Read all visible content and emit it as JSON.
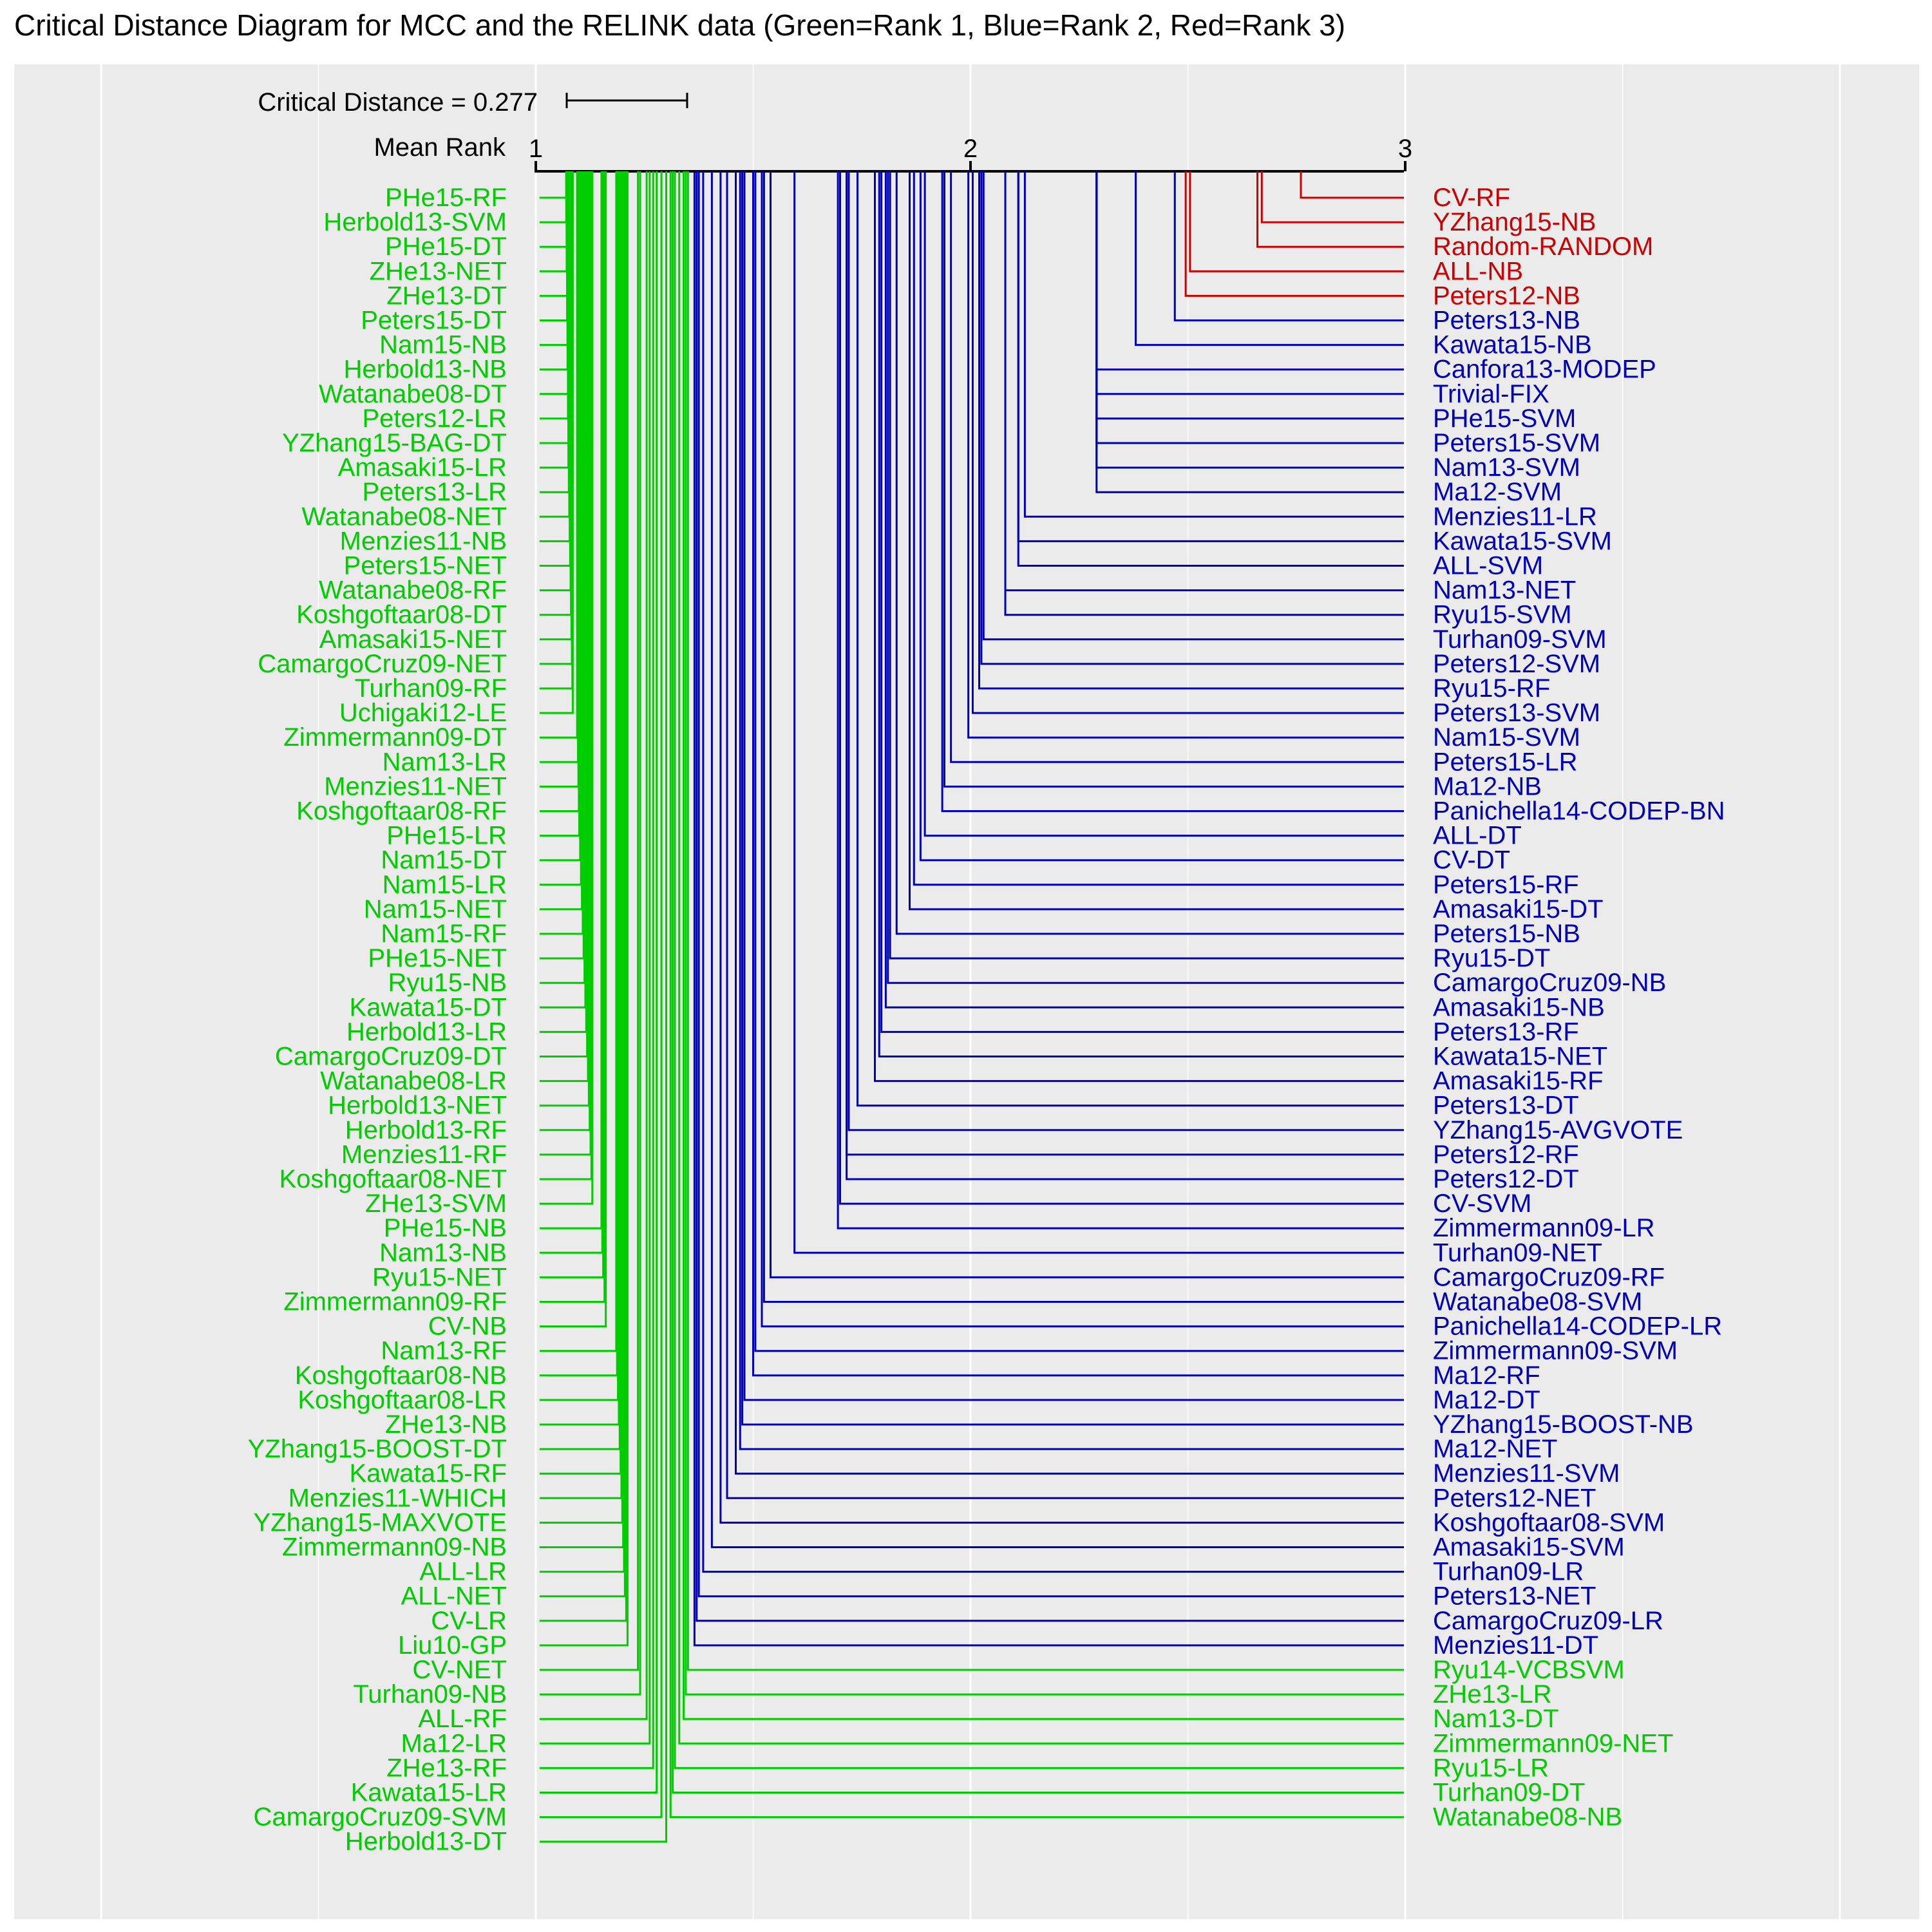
{
  "chart_data": {
    "type": "critical-distance",
    "title": "Critical Distance Diagram for MCC and the RELINK data (Green=Rank 1, Blue=Rank 2, Red=Rank 3)",
    "critical_distance_label": "Critical Distance = 0.277",
    "critical_distance": 0.277,
    "axis_label": "Mean Rank",
    "xlim": [
      1,
      3
    ],
    "ticks": [
      "1",
      "2",
      "3"
    ],
    "tick_values": [
      1,
      2,
      3
    ],
    "grid": true,
    "colors": {
      "rank1": "#00cc00",
      "rank2": "#0000b8",
      "rank3": "#cc0000",
      "panel": "#ebebeb",
      "grid": "#ffffff"
    },
    "rank_legend": [
      "Green=Rank 1",
      "Blue=Rank 2",
      "Red=Rank 3"
    ],
    "left_labels": [
      {
        "name": "PHe15-RF",
        "mean_rank": 1.07,
        "group": 1
      },
      {
        "name": "Herbold13-SVM",
        "mean_rank": 1.07,
        "group": 1
      },
      {
        "name": "PHe15-DT",
        "mean_rank": 1.071,
        "group": 1
      },
      {
        "name": "ZHe13-NET",
        "mean_rank": 1.071,
        "group": 1
      },
      {
        "name": "ZHe13-DT",
        "mean_rank": 1.072,
        "group": 1
      },
      {
        "name": "Peters15-DT",
        "mean_rank": 1.072,
        "group": 1
      },
      {
        "name": "Nam15-NB",
        "mean_rank": 1.073,
        "group": 1
      },
      {
        "name": "Herbold13-NB",
        "mean_rank": 1.073,
        "group": 1
      },
      {
        "name": "Watanabe08-DT",
        "mean_rank": 1.074,
        "group": 1
      },
      {
        "name": "Peters12-LR",
        "mean_rank": 1.074,
        "group": 1
      },
      {
        "name": "YZhang15-BAG-DT",
        "mean_rank": 1.075,
        "group": 1
      },
      {
        "name": "Amasaki15-LR",
        "mean_rank": 1.075,
        "group": 1
      },
      {
        "name": "Peters13-LR",
        "mean_rank": 1.076,
        "group": 1
      },
      {
        "name": "Watanabe08-NET",
        "mean_rank": 1.077,
        "group": 1
      },
      {
        "name": "Menzies11-NB",
        "mean_rank": 1.078,
        "group": 1
      },
      {
        "name": "Peters15-NET",
        "mean_rank": 1.079,
        "group": 1
      },
      {
        "name": "Watanabe08-RF",
        "mean_rank": 1.08,
        "group": 1
      },
      {
        "name": "Koshgoftaar08-DT",
        "mean_rank": 1.081,
        "group": 1
      },
      {
        "name": "Amasaki15-NET",
        "mean_rank": 1.082,
        "group": 1
      },
      {
        "name": "CamargoCruz09-NET",
        "mean_rank": 1.083,
        "group": 1
      },
      {
        "name": "Turhan09-RF",
        "mean_rank": 1.084,
        "group": 1
      },
      {
        "name": "Uchigaki12-LE",
        "mean_rank": 1.085,
        "group": 1
      },
      {
        "name": "Zimmermann09-DT",
        "mean_rank": 1.095,
        "group": 1
      },
      {
        "name": "Nam13-LR",
        "mean_rank": 1.097,
        "group": 1
      },
      {
        "name": "Menzies11-NET",
        "mean_rank": 1.098,
        "group": 1
      },
      {
        "name": "Koshgoftaar08-RF",
        "mean_rank": 1.099,
        "group": 1
      },
      {
        "name": "PHe15-LR",
        "mean_rank": 1.1,
        "group": 1
      },
      {
        "name": "Nam15-DT",
        "mean_rank": 1.102,
        "group": 1
      },
      {
        "name": "Nam15-LR",
        "mean_rank": 1.104,
        "group": 1
      },
      {
        "name": "Nam15-NET",
        "mean_rank": 1.106,
        "group": 1
      },
      {
        "name": "Nam15-RF",
        "mean_rank": 1.108,
        "group": 1
      },
      {
        "name": "PHe15-NET",
        "mean_rank": 1.11,
        "group": 1
      },
      {
        "name": "Ryu15-NB",
        "mean_rank": 1.112,
        "group": 1
      },
      {
        "name": "Kawata15-DT",
        "mean_rank": 1.114,
        "group": 1
      },
      {
        "name": "Herbold13-LR",
        "mean_rank": 1.116,
        "group": 1
      },
      {
        "name": "CamargoCruz09-DT",
        "mean_rank": 1.118,
        "group": 1
      },
      {
        "name": "Watanabe08-LR",
        "mean_rank": 1.12,
        "group": 1
      },
      {
        "name": "Herbold13-NET",
        "mean_rank": 1.122,
        "group": 1
      },
      {
        "name": "Herbold13-RF",
        "mean_rank": 1.124,
        "group": 1
      },
      {
        "name": "Menzies11-RF",
        "mean_rank": 1.126,
        "group": 1
      },
      {
        "name": "Koshgoftaar08-NET",
        "mean_rank": 1.128,
        "group": 1
      },
      {
        "name": "ZHe13-SVM",
        "mean_rank": 1.13,
        "group": 1
      },
      {
        "name": "PHe15-NB",
        "mean_rank": 1.151,
        "group": 1
      },
      {
        "name": "Nam13-NB",
        "mean_rank": 1.153,
        "group": 1
      },
      {
        "name": "Ryu15-NET",
        "mean_rank": 1.155,
        "group": 1
      },
      {
        "name": "Zimmermann09-RF",
        "mean_rank": 1.158,
        "group": 1
      },
      {
        "name": "CV-NB",
        "mean_rank": 1.161,
        "group": 1
      },
      {
        "name": "Nam13-RF",
        "mean_rank": 1.185,
        "group": 1
      },
      {
        "name": "Koshgoftaar08-NB",
        "mean_rank": 1.187,
        "group": 1
      },
      {
        "name": "Koshgoftaar08-LR",
        "mean_rank": 1.189,
        "group": 1
      },
      {
        "name": "ZHe13-NB",
        "mean_rank": 1.191,
        "group": 1
      },
      {
        "name": "YZhang15-BOOST-DT",
        "mean_rank": 1.193,
        "group": 1
      },
      {
        "name": "Kawata15-RF",
        "mean_rank": 1.195,
        "group": 1
      },
      {
        "name": "Menzies11-WHICH",
        "mean_rank": 1.197,
        "group": 1
      },
      {
        "name": "YZhang15-MAXVOTE",
        "mean_rank": 1.199,
        "group": 1
      },
      {
        "name": "Zimmermann09-NB",
        "mean_rank": 1.201,
        "group": 1
      },
      {
        "name": "ALL-LR",
        "mean_rank": 1.203,
        "group": 1
      },
      {
        "name": "ALL-NET",
        "mean_rank": 1.205,
        "group": 1
      },
      {
        "name": "CV-LR",
        "mean_rank": 1.208,
        "group": 1
      },
      {
        "name": "Liu10-GP",
        "mean_rank": 1.211,
        "group": 1
      },
      {
        "name": "CV-NET",
        "mean_rank": 1.235,
        "group": 1
      },
      {
        "name": "Turhan09-NB",
        "mean_rank": 1.24,
        "group": 1
      },
      {
        "name": "ALL-RF",
        "mean_rank": 1.255,
        "group": 1
      },
      {
        "name": "Ma12-LR",
        "mean_rank": 1.262,
        "group": 1
      },
      {
        "name": "ZHe13-RF",
        "mean_rank": 1.27,
        "group": 1
      },
      {
        "name": "Kawata15-LR",
        "mean_rank": 1.278,
        "group": 1
      },
      {
        "name": "CamargoCruz09-SVM",
        "mean_rank": 1.289,
        "group": 1
      },
      {
        "name": "Herbold13-DT",
        "mean_rank": 1.3,
        "group": 1
      }
    ],
    "right_labels": [
      {
        "name": "CV-RF",
        "mean_rank": 2.76,
        "group": 3
      },
      {
        "name": "YZhang15-NB",
        "mean_rank": 2.67,
        "group": 3
      },
      {
        "name": "Random-RANDOM",
        "mean_rank": 2.66,
        "group": 3
      },
      {
        "name": "ALL-NB",
        "mean_rank": 2.505,
        "group": 3
      },
      {
        "name": "Peters12-NB",
        "mean_rank": 2.495,
        "group": 3
      },
      {
        "name": "Peters13-NB",
        "mean_rank": 2.47,
        "group": 2
      },
      {
        "name": "Kawata15-NB",
        "mean_rank": 2.38,
        "group": 2
      },
      {
        "name": "Canfora13-MODEP",
        "mean_rank": 2.29,
        "group": 2
      },
      {
        "name": "Trivial-FIX",
        "mean_rank": 2.29,
        "group": 2
      },
      {
        "name": "PHe15-SVM",
        "mean_rank": 2.29,
        "group": 2
      },
      {
        "name": "Peters15-SVM",
        "mean_rank": 2.29,
        "group": 2
      },
      {
        "name": "Nam13-SVM",
        "mean_rank": 2.29,
        "group": 2
      },
      {
        "name": "Ma12-SVM",
        "mean_rank": 2.29,
        "group": 2
      },
      {
        "name": "Menzies11-LR",
        "mean_rank": 2.125,
        "group": 2
      },
      {
        "name": "Kawata15-SVM",
        "mean_rank": 2.11,
        "group": 2
      },
      {
        "name": "ALL-SVM",
        "mean_rank": 2.11,
        "group": 2
      },
      {
        "name": "Nam13-NET",
        "mean_rank": 2.08,
        "group": 2
      },
      {
        "name": "Ryu15-SVM",
        "mean_rank": 2.08,
        "group": 2
      },
      {
        "name": "Turhan09-SVM",
        "mean_rank": 2.03,
        "group": 2
      },
      {
        "name": "Peters12-SVM",
        "mean_rank": 2.025,
        "group": 2
      },
      {
        "name": "Ryu15-RF",
        "mean_rank": 2.02,
        "group": 2
      },
      {
        "name": "Peters13-SVM",
        "mean_rank": 2.005,
        "group": 2
      },
      {
        "name": "Nam15-SVM",
        "mean_rank": 1.995,
        "group": 2
      },
      {
        "name": "Peters15-LR",
        "mean_rank": 1.955,
        "group": 2
      },
      {
        "name": "Ma12-NB",
        "mean_rank": 1.94,
        "group": 2
      },
      {
        "name": "Panichella14-CODEP-BN",
        "mean_rank": 1.935,
        "group": 2
      },
      {
        "name": "ALL-DT",
        "mean_rank": 1.895,
        "group": 2
      },
      {
        "name": "CV-DT",
        "mean_rank": 1.885,
        "group": 2
      },
      {
        "name": "Peters15-RF",
        "mean_rank": 1.87,
        "group": 2
      },
      {
        "name": "Amasaki15-DT",
        "mean_rank": 1.86,
        "group": 2
      },
      {
        "name": "Peters15-NB",
        "mean_rank": 1.83,
        "group": 2
      },
      {
        "name": "Ryu15-DT",
        "mean_rank": 1.815,
        "group": 2
      },
      {
        "name": "CamargoCruz09-NB",
        "mean_rank": 1.81,
        "group": 2
      },
      {
        "name": "Amasaki15-NB",
        "mean_rank": 1.805,
        "group": 2
      },
      {
        "name": "Peters13-RF",
        "mean_rank": 1.795,
        "group": 2
      },
      {
        "name": "Kawata15-NET",
        "mean_rank": 1.79,
        "group": 2
      },
      {
        "name": "Amasaki15-RF",
        "mean_rank": 1.78,
        "group": 2
      },
      {
        "name": "Peters13-DT",
        "mean_rank": 1.74,
        "group": 2
      },
      {
        "name": "YZhang15-AVGVOTE",
        "mean_rank": 1.72,
        "group": 2
      },
      {
        "name": "Peters12-RF",
        "mean_rank": 1.715,
        "group": 2
      },
      {
        "name": "Peters12-DT",
        "mean_rank": 1.715,
        "group": 2
      },
      {
        "name": "CV-SVM",
        "mean_rank": 1.7,
        "group": 2
      },
      {
        "name": "Zimmermann09-LR",
        "mean_rank": 1.695,
        "group": 2
      },
      {
        "name": "Turhan09-NET",
        "mean_rank": 1.595,
        "group": 2
      },
      {
        "name": "CamargoCruz09-RF",
        "mean_rank": 1.54,
        "group": 2
      },
      {
        "name": "Watanabe08-SVM",
        "mean_rank": 1.525,
        "group": 2
      },
      {
        "name": "Panichella14-CODEP-LR",
        "mean_rank": 1.52,
        "group": 2
      },
      {
        "name": "Zimmermann09-SVM",
        "mean_rank": 1.505,
        "group": 2
      },
      {
        "name": "Ma12-RF",
        "mean_rank": 1.5,
        "group": 2
      },
      {
        "name": "Ma12-DT",
        "mean_rank": 1.48,
        "group": 2
      },
      {
        "name": "YZhang15-BOOST-NB",
        "mean_rank": 1.475,
        "group": 2
      },
      {
        "name": "Ma12-NET",
        "mean_rank": 1.47,
        "group": 2
      },
      {
        "name": "Menzies11-SVM",
        "mean_rank": 1.46,
        "group": 2
      },
      {
        "name": "Peters12-NET",
        "mean_rank": 1.44,
        "group": 2
      },
      {
        "name": "Koshgoftaar08-SVM",
        "mean_rank": 1.425,
        "group": 2
      },
      {
        "name": "Amasaki15-SVM",
        "mean_rank": 1.405,
        "group": 2
      },
      {
        "name": "Turhan09-LR",
        "mean_rank": 1.385,
        "group": 2
      },
      {
        "name": "Peters13-NET",
        "mean_rank": 1.375,
        "group": 2
      },
      {
        "name": "CamargoCruz09-LR",
        "mean_rank": 1.37,
        "group": 2
      },
      {
        "name": "Menzies11-DT",
        "mean_rank": 1.365,
        "group": 2
      },
      {
        "name": "Ryu14-VCBSVM",
        "mean_rank": 1.35,
        "group": 1
      },
      {
        "name": "ZHe13-LR",
        "mean_rank": 1.345,
        "group": 1
      },
      {
        "name": "Nam13-DT",
        "mean_rank": 1.34,
        "group": 1
      },
      {
        "name": "Zimmermann09-NET",
        "mean_rank": 1.33,
        "group": 1
      },
      {
        "name": "Ryu15-LR",
        "mean_rank": 1.32,
        "group": 1
      },
      {
        "name": "Turhan09-DT",
        "mean_rank": 1.315,
        "group": 1
      },
      {
        "name": "Watanabe08-NB",
        "mean_rank": 1.31,
        "group": 1
      }
    ]
  }
}
